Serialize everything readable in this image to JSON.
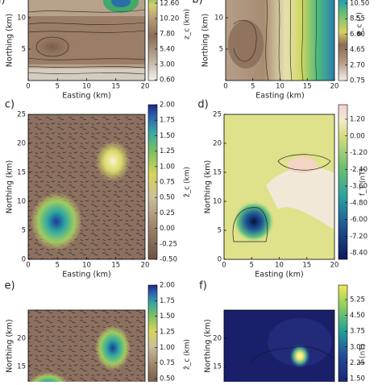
{
  "chart_data": [
    {
      "type": "contour",
      "label": "a)",
      "xlabel": "Easting (km)",
      "ylabel": "Northing (km)",
      "xlim": [
        0,
        20
      ],
      "xticks": [
        0,
        5,
        10,
        15,
        20
      ],
      "yticks": [
        5,
        10
      ],
      "colorbar": {
        "label": "z_c (km)",
        "clim": [
          0.6,
          12.6
        ],
        "ticks": [
          {
            "value": 12.6,
            "label": "12.60"
          },
          {
            "value": 10.2,
            "label": "10.20"
          },
          {
            "value": 7.8,
            "label": "7.80"
          },
          {
            "value": 5.4,
            "label": "5.40"
          },
          {
            "value": 3.0,
            "label": "3.00"
          },
          {
            "value": 0.6,
            "label": "0.60"
          }
        ]
      }
    },
    {
      "type": "contour",
      "label": "b)",
      "xlabel": "Easting (km)",
      "ylabel": "Northing (km)",
      "xlim": [
        0,
        20
      ],
      "xticks": [
        0,
        5,
        10,
        15,
        20
      ],
      "yticks": [
        5,
        10
      ],
      "colorbar": {
        "label": "φ_c (°)",
        "clim": [
          0.75,
          10.5
        ],
        "ticks": [
          {
            "value": 10.5,
            "label": "10.50"
          },
          {
            "value": 8.55,
            "label": "8.55"
          },
          {
            "value": 6.6,
            "label": "6.60"
          },
          {
            "value": 4.65,
            "label": "4.65"
          },
          {
            "value": 2.7,
            "label": "2.70"
          },
          {
            "value": 0.75,
            "label": "0.75"
          }
        ]
      }
    },
    {
      "type": "contour",
      "label": "c)",
      "xlabel": "Easting (km)",
      "ylabel": "Northing (km)",
      "xlim": [
        0,
        20
      ],
      "xticks": [
        0,
        5,
        10,
        15,
        20
      ],
      "yticks": [
        0,
        5,
        10,
        15,
        20,
        25
      ],
      "colorbar": {
        "label": "ẑ_c (km)",
        "clim": [
          -0.5,
          2.0
        ],
        "ticks": [
          {
            "value": 2.0,
            "label": "2.00"
          },
          {
            "value": 1.75,
            "label": "1.75"
          },
          {
            "value": 1.5,
            "label": "1.50"
          },
          {
            "value": 1.25,
            "label": "1.25"
          },
          {
            "value": 1.0,
            "label": "1.00"
          },
          {
            "value": 0.75,
            "label": "0.75"
          },
          {
            "value": 0.5,
            "label": "0.50"
          },
          {
            "value": 0.25,
            "label": "0.25"
          },
          {
            "value": 0,
            "label": "0.00"
          },
          {
            "value": -0.25,
            "label": "-0.25"
          },
          {
            "value": -0.5,
            "label": "-0.50"
          }
        ]
      }
    },
    {
      "type": "contour",
      "label": "d)",
      "xlabel": "Easting (km)",
      "ylabel": "Northing (km)",
      "xlim": [
        0,
        20
      ],
      "xticks": [
        0,
        5,
        10,
        15,
        20
      ],
      "yticks": [
        0,
        5,
        10,
        15,
        20,
        25
      ],
      "colorbar": {
        "label": "f_T (nT)",
        "clim": [
          -8.4,
          1.2
        ],
        "ticks": [
          {
            "value": 1.2,
            "label": "1.20"
          },
          {
            "value": 0,
            "label": "0.00"
          },
          {
            "value": -1.2,
            "label": "-1.20"
          },
          {
            "value": -2.4,
            "label": "-2.40"
          },
          {
            "value": -3.6,
            "label": "-3.60"
          },
          {
            "value": -4.8,
            "label": "-4.80"
          },
          {
            "value": -6.0,
            "label": "-6.00"
          },
          {
            "value": -7.2,
            "label": "-7.20"
          },
          {
            "value": -8.4,
            "label": "-8.40"
          }
        ]
      }
    },
    {
      "type": "contour",
      "label": "e)",
      "ylabel": "Northing (km)",
      "xlim": [
        0,
        20
      ],
      "yticks": [
        15,
        20
      ],
      "colorbar": {
        "label": "ẑ_c (km)",
        "clim": [
          0.5,
          2.0
        ],
        "ticks": [
          {
            "value": 2.0,
            "label": "2.00"
          },
          {
            "value": 1.75,
            "label": "1.75"
          },
          {
            "value": 1.5,
            "label": "1.50"
          },
          {
            "value": 1.25,
            "label": "1.25"
          },
          {
            "value": 1.0,
            "label": "1.00"
          },
          {
            "value": 0.75,
            "label": "0.75"
          },
          {
            "value": 0.5,
            "label": "0.50"
          }
        ]
      }
    },
    {
      "type": "contour",
      "label": "f)",
      "ylabel": "Northing (km)",
      "xlim": [
        0,
        20
      ],
      "yticks": [
        15,
        20
      ],
      "colorbar": {
        "label": "T (nT)",
        "clim": [
          1.5,
          5.25
        ],
        "ticks": [
          {
            "value": 5.25,
            "label": "5.25"
          },
          {
            "value": 4.5,
            "label": "4.50"
          },
          {
            "value": 3.75,
            "label": "3.75"
          },
          {
            "value": 3.0,
            "label": "3.00"
          },
          {
            "value": 2.25,
            "label": "2.25"
          },
          {
            "value": 1.5,
            "label": "1.50"
          }
        ]
      }
    }
  ]
}
